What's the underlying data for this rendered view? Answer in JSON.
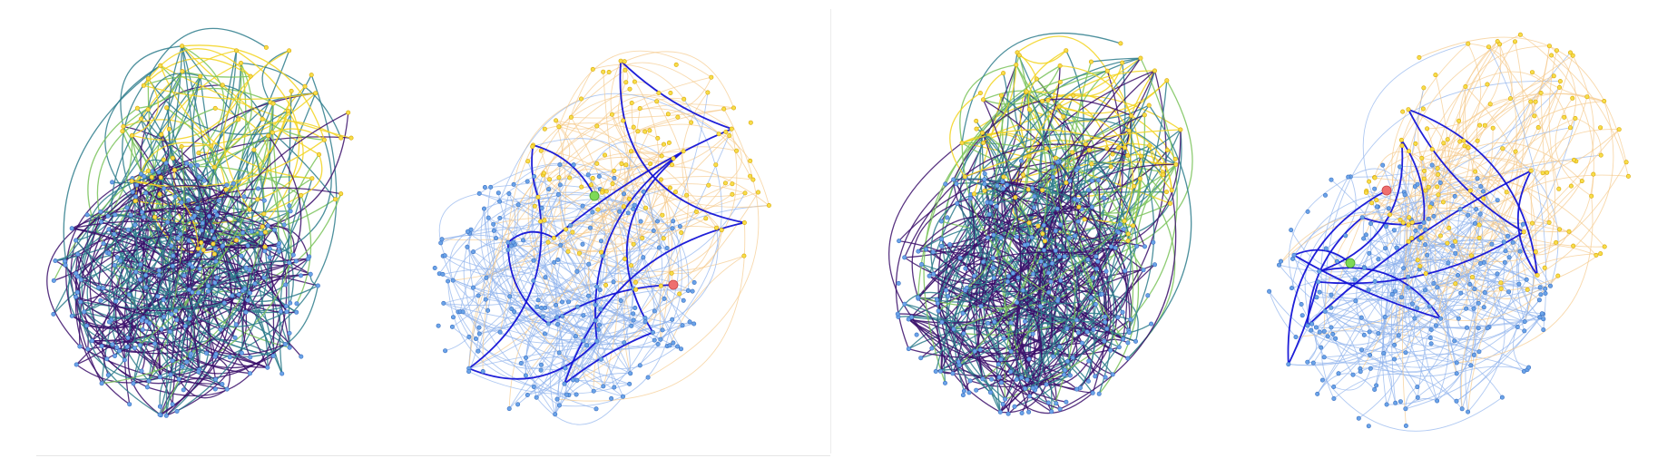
{
  "figure": {
    "description_visible_text": "",
    "colors": {
      "core_node_fill": "#6aa3e8",
      "core_node_stroke": "#3a6fc0",
      "periphery_node_fill": "#f7dd4a",
      "periphery_node_stroke": "#d9a600",
      "viridis_dark": "#3b0f6b",
      "viridis_teal": "#2e7d8c",
      "viridis_green": "#7ac35a",
      "viridis_yellow": "#f2d31f",
      "light_blue_edge": "#8fb2ec",
      "light_orange_edge": "#f5c98a",
      "highlight_path": "#1313d6",
      "source_marker": "#7ed957",
      "target_marker": "#ef6f6f",
      "background": "#ffffff",
      "panel_rule": "#e6e6e6"
    }
  },
  "panels": [
    {
      "id": "a",
      "style": "viridis-edges",
      "seed": 11,
      "has_path": false
    },
    {
      "id": "b",
      "style": "highlighted-path",
      "seed": 23,
      "has_path": true
    },
    {
      "id": "c",
      "style": "viridis-edges",
      "seed": 37,
      "has_path": false
    },
    {
      "id": "d",
      "style": "highlighted-path",
      "seed": 51,
      "has_path": true
    }
  ]
}
